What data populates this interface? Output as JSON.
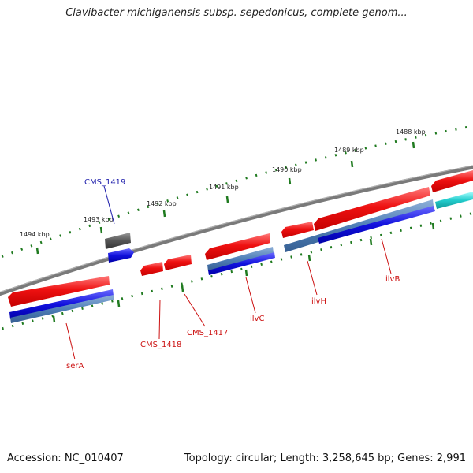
{
  "title": "Clavibacter michiganensis subsp. sepedonicus, complete genom...",
  "footer": {
    "accession": "Accession: NC_010407",
    "summary": "Topology: circular; Length: 3,258,645 bp; Genes: 2,991"
  },
  "scale_labels": [
    "1494 kbp",
    "1493 kbp",
    "1492 kbp",
    "1491 kbp",
    "1490 kbp",
    "1489 kbp",
    "1488 kbp"
  ],
  "gene_labels": [
    "CMS_1419",
    "serA",
    "CMS_1418",
    "CMS_1417",
    "ilvC",
    "ilvH",
    "ilvB"
  ],
  "colors": {
    "gene": "#ee1111",
    "cds": "#1111dd",
    "cds_alt": "#4f7fb8",
    "cds_cyan": "#22cccc",
    "pseudo": "#555555",
    "backbone": "#7a7a7a",
    "tick": "#1f7a1f",
    "label_red": "#cc1111",
    "label_blue": "#1a1aaa"
  }
}
